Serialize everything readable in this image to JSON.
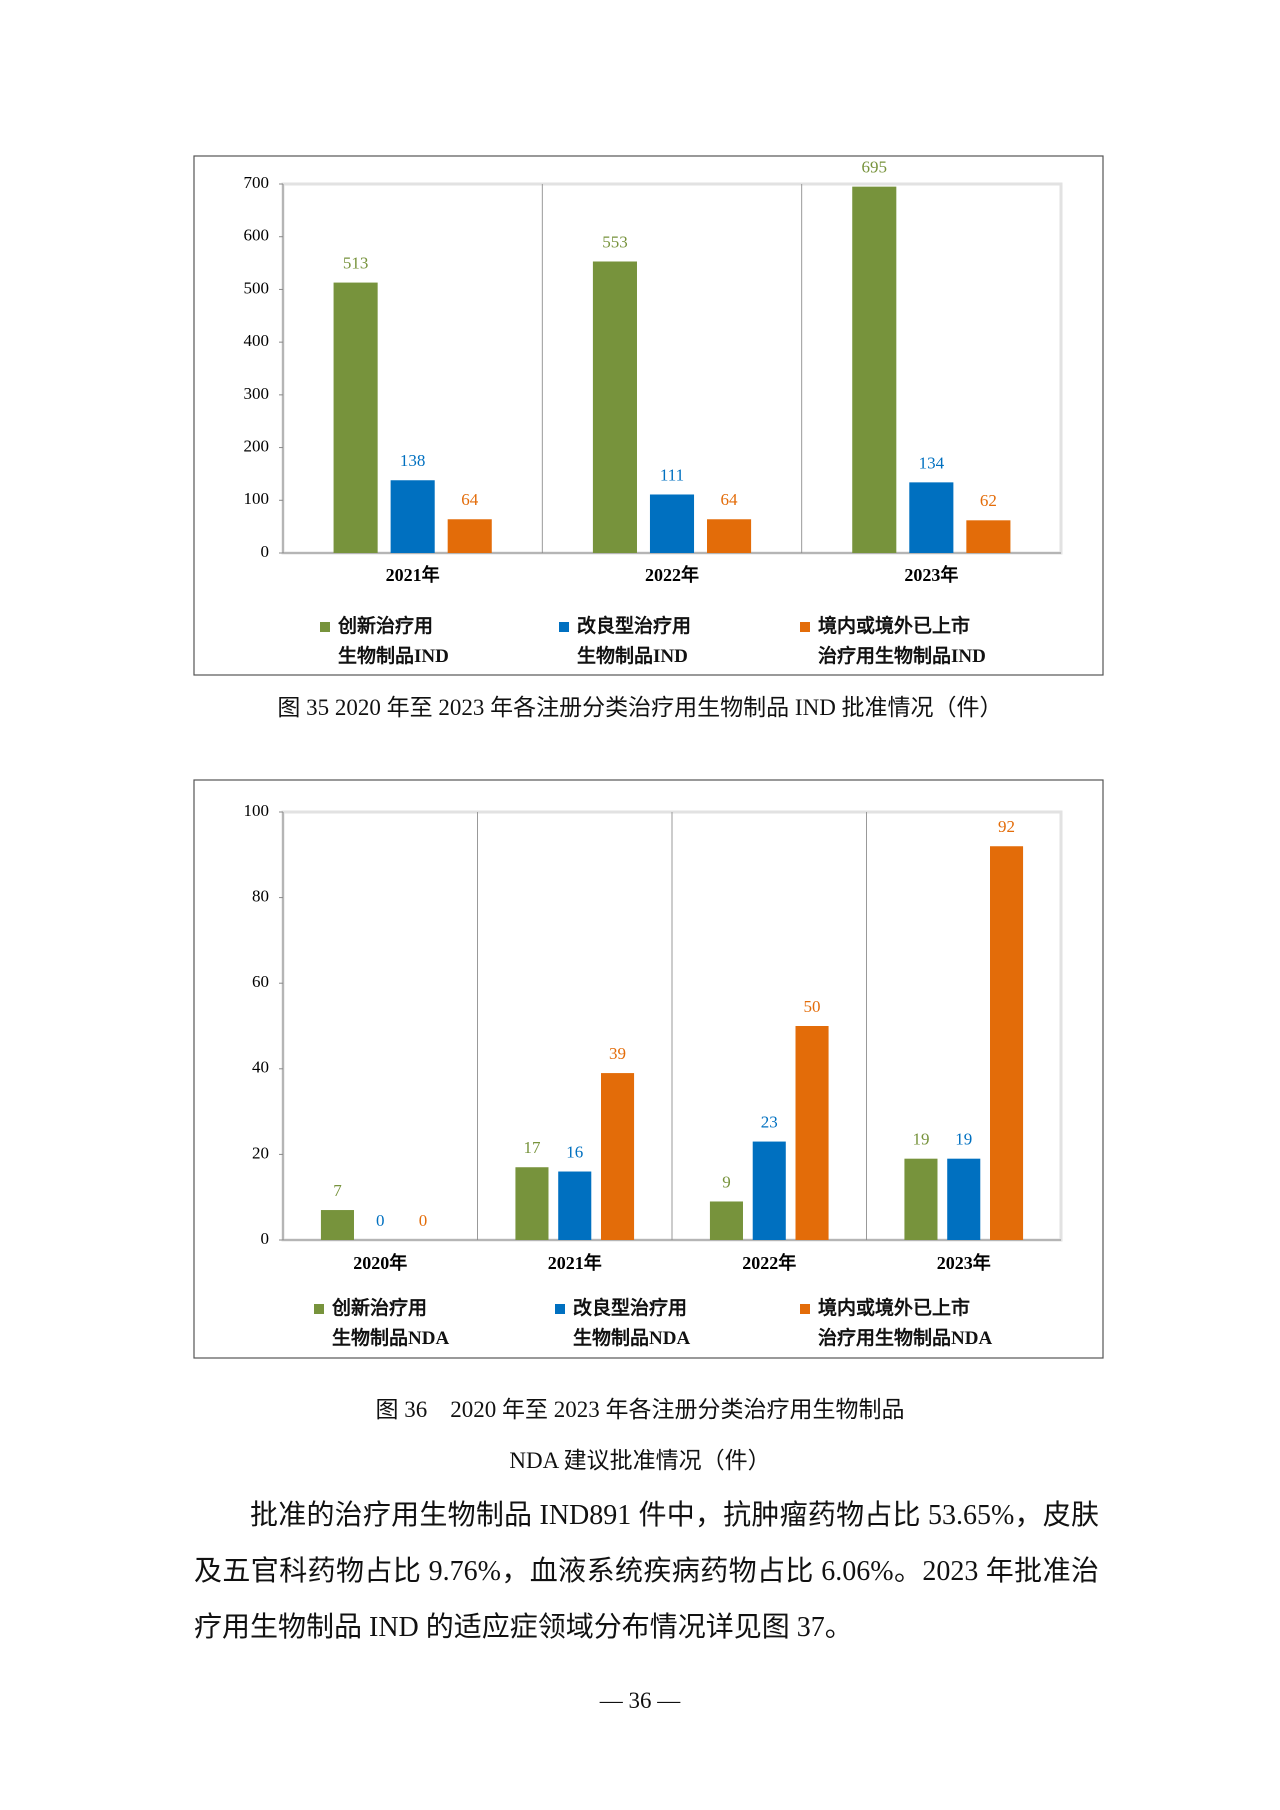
{
  "chart_data": [
    {
      "type": "bar",
      "categories": [
        "2021年",
        "2022年",
        "2023年"
      ],
      "series": [
        {
          "name": "创新治疗用\n生物制品IND",
          "color": "#77933c",
          "values": [
            513,
            553,
            695
          ]
        },
        {
          "name": "改良型治疗用\n生物制品IND",
          "color": "#0070c0",
          "values": [
            138,
            111,
            134
          ]
        },
        {
          "name": "境内或境外已上市\n治疗用生物制品IND",
          "color": "#e36c09",
          "values": [
            64,
            64,
            62
          ]
        }
      ],
      "ylim": [
        0,
        700
      ],
      "yticks": [
        0,
        100,
        200,
        300,
        400,
        500,
        600,
        700
      ]
    },
    {
      "type": "bar",
      "categories": [
        "2020年",
        "2021年",
        "2022年",
        "2023年"
      ],
      "series": [
        {
          "name": "创新治疗用\n生物制品NDA",
          "color": "#77933c",
          "values": [
            7,
            17,
            9,
            19
          ]
        },
        {
          "name": "改良型治疗用\n生物制品NDA",
          "color": "#0070c0",
          "values": [
            0,
            16,
            23,
            19
          ]
        },
        {
          "name": "境内或境外已上市\n治疗用生物制品NDA",
          "color": "#e36c09",
          "values": [
            0,
            39,
            50,
            92
          ]
        }
      ],
      "ylim": [
        0,
        100
      ],
      "yticks": [
        0,
        20,
        40,
        60,
        80,
        100
      ]
    }
  ],
  "captions": [
    [
      "图 35 2020 年至 2023 年各注册分类治疗用生物制品 IND 批准情况（件）"
    ],
    [
      "图 36　2020 年至 2023 年各注册分类治疗用生物制品",
      "NDA 建议批准情况（件）"
    ]
  ],
  "paragraph": "批准的治疗用生物制品 IND891 件中，抗肿瘤药物占比 53.65%，皮肤及五官科药物占比 9.76%，血液系统疾病药物占比 6.06%。2023 年批准治疗用生物制品 IND 的适应症领域分布情况详见图 37。",
  "page_number": "— 36 —"
}
